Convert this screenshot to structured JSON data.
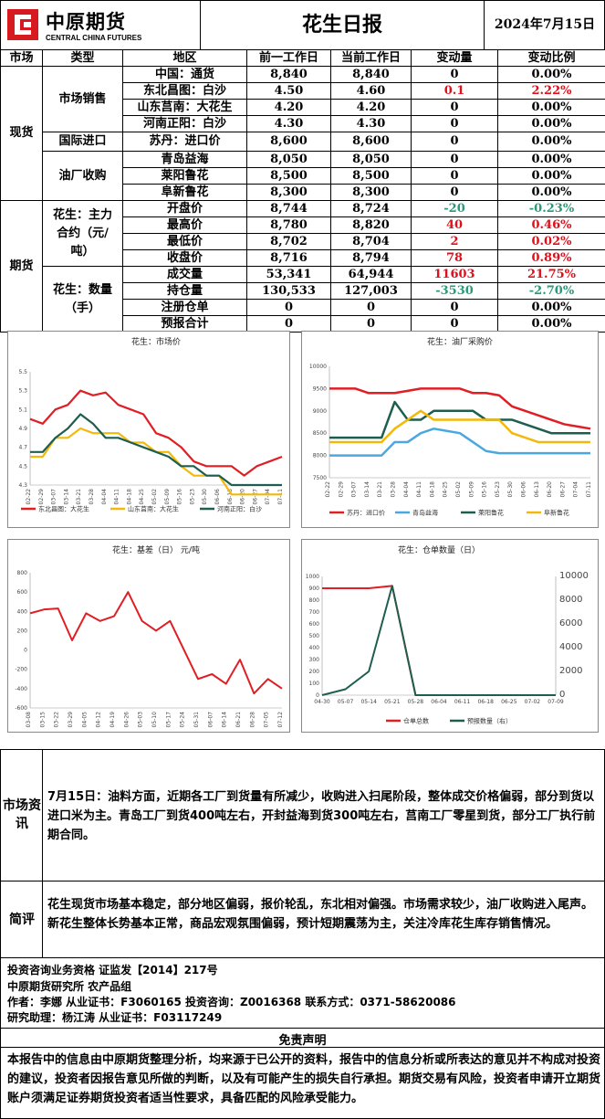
{
  "header": {
    "logo_cn": "中原期货",
    "logo_en": "CENTRAL CHINA FUTURES",
    "title": "花生日报",
    "date": "2024年7月15日"
  },
  "columns": [
    "市场",
    "类型",
    "地区",
    "前一工作日",
    "当前工作日",
    "变动量",
    "变动比例"
  ],
  "spot": {
    "market": "现货",
    "groups": [
      {
        "type": "市场销售",
        "rows": [
          {
            "region": "中国：通货",
            "prev": "8,840",
            "curr": "8,840",
            "chg": "0",
            "pct": "0.00%",
            "dir": ""
          },
          {
            "region": "东北昌图：白沙",
            "prev": "4.50",
            "curr": "4.60",
            "chg": "0.1",
            "pct": "2.22%",
            "dir": "up"
          },
          {
            "region": "山东莒南：大花生",
            "prev": "4.20",
            "curr": "4.20",
            "chg": "0",
            "pct": "0.00%",
            "dir": ""
          },
          {
            "region": "河南正阳：白沙",
            "prev": "4.30",
            "curr": "4.30",
            "chg": "0",
            "pct": "0.00%",
            "dir": ""
          }
        ]
      },
      {
        "type": "国际进口",
        "rows": [
          {
            "region": "苏丹：进口价",
            "prev": "8,600",
            "curr": "8,600",
            "chg": "0",
            "pct": "0.00%",
            "dir": ""
          }
        ]
      },
      {
        "type": "油厂收购",
        "rows": [
          {
            "region": "青岛益海",
            "prev": "8,050",
            "curr": "8,050",
            "chg": "0",
            "pct": "0.00%",
            "dir": ""
          },
          {
            "region": "莱阳鲁花",
            "prev": "8,500",
            "curr": "8,500",
            "chg": "0",
            "pct": "0.00%",
            "dir": ""
          },
          {
            "region": "阜新鲁花",
            "prev": "8,300",
            "curr": "8,300",
            "chg": "0",
            "pct": "0.00%",
            "dir": ""
          }
        ]
      }
    ]
  },
  "futures": {
    "market": "期货",
    "groups": [
      {
        "type": "花生：主力合约（元/吨）",
        "rows": [
          {
            "region": "开盘价",
            "prev": "8,744",
            "curr": "8,724",
            "chg": "-20",
            "pct": "-0.23%",
            "dir": "down"
          },
          {
            "region": "最高价",
            "prev": "8,780",
            "curr": "8,820",
            "chg": "40",
            "pct": "0.46%",
            "dir": "up"
          },
          {
            "region": "最低价",
            "prev": "8,702",
            "curr": "8,704",
            "chg": "2",
            "pct": "0.02%",
            "dir": "up"
          },
          {
            "region": "收盘价",
            "prev": "8,716",
            "curr": "8,794",
            "chg": "78",
            "pct": "0.89%",
            "dir": "up"
          }
        ]
      },
      {
        "type": "花生：数量（手）",
        "rows": [
          {
            "region": "成交量",
            "prev": "53,341",
            "curr": "64,944",
            "chg": "11603",
            "pct": "21.75%",
            "dir": "up"
          },
          {
            "region": "持仓量",
            "prev": "130,533",
            "curr": "127,003",
            "chg": "-3530",
            "pct": "-2.70%",
            "dir": "down"
          },
          {
            "region": "注册仓单",
            "prev": "0",
            "curr": "0",
            "chg": "0",
            "pct": "0.00%",
            "dir": ""
          },
          {
            "region": "预报合计",
            "prev": "0",
            "curr": "0",
            "chg": "0",
            "pct": "0.00%",
            "dir": ""
          }
        ]
      }
    ]
  },
  "chart_data": [
    {
      "type": "line",
      "title": "花生：市场价",
      "x": [
        "02-22",
        "02-29",
        "03-07",
        "03-14",
        "03-21",
        "03-28",
        "04-04",
        "04-11",
        "04-18",
        "04-25",
        "05-02",
        "05-09",
        "05-16",
        "05-23",
        "05-30",
        "06-06",
        "06-13",
        "06-20",
        "06-27",
        "07-04",
        "07-11"
      ],
      "ylim": [
        4.3,
        5.5
      ],
      "yticks": [
        "5.5",
        "5.3",
        "5.1",
        "4.9",
        "4.7",
        "4.5",
        "4.3"
      ],
      "series": [
        {
          "name": "东北昌图：大花生",
          "color": "#e01e24",
          "values": [
            5.0,
            4.95,
            5.1,
            5.15,
            5.3,
            5.25,
            5.28,
            5.15,
            5.1,
            5.05,
            4.85,
            4.8,
            4.7,
            4.55,
            4.5,
            4.5,
            4.5,
            4.4,
            4.5,
            4.55,
            4.6
          ]
        },
        {
          "name": "山东莒南：大花生",
          "color": "#f2b90c",
          "values": [
            4.6,
            4.6,
            4.8,
            4.8,
            4.9,
            4.85,
            4.85,
            4.85,
            4.75,
            4.75,
            4.65,
            4.65,
            4.5,
            4.4,
            4.4,
            4.4,
            4.2,
            4.2,
            4.2,
            4.2,
            4.2
          ]
        },
        {
          "name": "河南正阳：白沙",
          "color": "#1e5e4e",
          "values": [
            4.65,
            4.65,
            4.8,
            4.9,
            5.05,
            4.95,
            4.8,
            4.8,
            4.75,
            4.7,
            4.65,
            4.6,
            4.5,
            4.5,
            4.4,
            4.4,
            4.3,
            4.3,
            4.3,
            4.3,
            4.3
          ]
        }
      ]
    },
    {
      "type": "line",
      "title": "花生：油厂采购价",
      "x": [
        "02-22",
        "02-29",
        "03-07",
        "03-14",
        "03-21",
        "03-28",
        "04-04",
        "04-11",
        "04-18",
        "04-25",
        "05-02",
        "05-09",
        "05-16",
        "05-23",
        "05-30",
        "06-06",
        "06-13",
        "06-20",
        "06-27",
        "07-04",
        "07-11"
      ],
      "ylim": [
        7500,
        10000
      ],
      "yticks": [
        "10000",
        "9500",
        "9000",
        "8500",
        "8000",
        "7500"
      ],
      "series": [
        {
          "name": "苏丹：进口价",
          "color": "#e01e24",
          "values": [
            9500,
            9500,
            9500,
            9400,
            9400,
            9400,
            9450,
            9500,
            9500,
            9500,
            9500,
            9400,
            9400,
            9350,
            9100,
            9000,
            8900,
            8800,
            8700,
            8650,
            8600
          ]
        },
        {
          "name": "青岛益海",
          "color": "#4aa8e0",
          "values": [
            8000,
            8000,
            8000,
            8000,
            8000,
            8300,
            8300,
            8500,
            8600,
            8550,
            8500,
            8300,
            8100,
            8050,
            8050,
            8050,
            8050,
            8050,
            8050,
            8050,
            8050
          ]
        },
        {
          "name": "莱阳鲁花",
          "color": "#1e5e4e",
          "values": [
            8400,
            8400,
            8400,
            8400,
            8400,
            9200,
            8800,
            8800,
            9000,
            9000,
            9000,
            9000,
            8800,
            8800,
            8800,
            8700,
            8600,
            8500,
            8500,
            8500,
            8500
          ]
        },
        {
          "name": "阜新鲁花",
          "color": "#f2b90c",
          "values": [
            8300,
            8300,
            8300,
            8300,
            8300,
            8600,
            8800,
            9000,
            8800,
            8800,
            8800,
            8800,
            8800,
            8800,
            8500,
            8400,
            8300,
            8300,
            8300,
            8300,
            8300
          ]
        }
      ]
    },
    {
      "type": "line",
      "title": "花生：基差（日） 元/吨",
      "x": [
        "03-08",
        "03-15",
        "03-22",
        "03-29",
        "04-05",
        "04-12",
        "04-19",
        "04-26",
        "05-03",
        "05-10",
        "05-17",
        "05-24",
        "05-31",
        "06-07",
        "06-14",
        "06-21",
        "06-28",
        "07-05",
        "07-12"
      ],
      "ylim": [
        -600,
        800
      ],
      "yticks": [
        "800",
        "600",
        "400",
        "200",
        "0",
        "-200",
        "-400",
        "-600"
      ],
      "series": [
        {
          "name": "",
          "color": "#e01e24",
          "values": [
            380,
            420,
            430,
            100,
            380,
            300,
            350,
            600,
            300,
            200,
            300,
            0,
            -300,
            -250,
            -350,
            -100,
            -450,
            -300,
            -400
          ]
        }
      ]
    },
    {
      "type": "line",
      "title": "花生：仓单数量（日）",
      "x": [
        "04-30",
        "05-07",
        "05-14",
        "05-21",
        "05-28",
        "06-04",
        "06-11",
        "06-18",
        "06-25",
        "07-02",
        "07-09"
      ],
      "ylim_left": [
        0,
        1000
      ],
      "ylim_right": [
        0,
        10000
      ],
      "yticks_left": [
        "1000",
        "900",
        "800",
        "700",
        "600",
        "500",
        "400",
        "300",
        "200",
        "100",
        "0"
      ],
      "yticks_right": [
        "10000",
        "8000",
        "6000",
        "4000",
        "2000",
        "0"
      ],
      "series": [
        {
          "name": "仓单总数",
          "color": "#e01e24",
          "axis": "left",
          "values": [
            900,
            900,
            900,
            920,
            0,
            0,
            0,
            0,
            0,
            0,
            0
          ]
        },
        {
          "name": "预报数量（右）",
          "color": "#1e5e4e",
          "axis": "right",
          "values": [
            0,
            500,
            2000,
            9200,
            0,
            0,
            0,
            0,
            0,
            0,
            0
          ]
        }
      ]
    }
  ],
  "market_info": {
    "label": "市场资讯",
    "text": "7月15日：油料方面，近期各工厂到货量有所减少，收购进入扫尾阶段，整体成交价格偏弱，部分到货以进口米为主。青岛工厂到货400吨左右，开封益海到货300吨左右，莒南工厂零星到货，部分工厂执行前期合同。"
  },
  "comment": {
    "label": "简评",
    "text": "花生现货市场基本稳定，部分地区偏弱，报价轮乱，东北相对偏强。市场需求较少，油厂收购进入尾声。新花生整体长势基本正常，商品宏观氛围偏弱，预计短期震荡为主，关注冷库花生库存销售情况。"
  },
  "footer": {
    "line1": "投资咨询业务资格  证监发【2014】217号",
    "line2": "中原期货研究所  农产品组",
    "line3": "作者：李娜    从业证书：F3060165    投资咨询：Z0016368    联系方式：0371-58620086",
    "line4": "研究助理：杨江涛    从业证书：F03117249"
  },
  "disclaimer": {
    "title": "免责声明",
    "text": "本报告中的信息由中原期货整理分析，均来源于已公开的资料，报告中的信息分析或所表达的意见并不构成对投资的建议，投资者因报告意见所做的判断，以及有可能产生的损失自行承担。期货交易有风险，投资者申请开立期货账户须满足证券期货投资者适当性要求，具备匹配的风险承受能力。"
  }
}
